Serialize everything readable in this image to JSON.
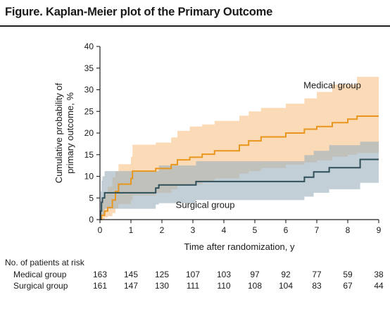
{
  "title": "Figure. Kaplan-Meier plot of the Primary Outcome",
  "chart_data": {
    "type": "line",
    "step": true,
    "xlabel": "Time after randomization, y",
    "ylabel_lines": [
      "Cumulative probability of",
      "primary outcome, %"
    ],
    "xlim": [
      0,
      9
    ],
    "ylim": [
      0,
      40
    ],
    "x_ticks": [
      "0",
      "1",
      "2",
      "3",
      "4",
      "5",
      "6",
      "7",
      "8",
      "9"
    ],
    "y_ticks": [
      "0",
      "5",
      "10",
      "15",
      "20",
      "25",
      "30",
      "35",
      "40"
    ],
    "grid": false,
    "series": [
      {
        "name": "Medical group",
        "color": "#e8961e",
        "band_color": "#f8c58a",
        "x": [
          0,
          0.05,
          0.15,
          0.25,
          0.4,
          0.5,
          0.6,
          1.0,
          1.05,
          1.8,
          2.3,
          2.5,
          2.9,
          3.3,
          3.7,
          4.5,
          4.8,
          5.2,
          6.0,
          6.6,
          7.0,
          7.5,
          8.0,
          8.3,
          9.0
        ],
        "y": [
          0,
          1.0,
          2.0,
          2.8,
          4.5,
          6.5,
          8.2,
          9.5,
          11.2,
          11.8,
          12.7,
          13.8,
          14.4,
          15.1,
          15.9,
          17.2,
          18.2,
          19.1,
          20.0,
          20.9,
          21.5,
          22.4,
          23.2,
          23.9,
          23.9
        ],
        "lower": [
          0,
          0.0,
          0.5,
          0.8,
          1.5,
          2.6,
          3.6,
          4.4,
          5.6,
          6.2,
          7.0,
          7.8,
          8.2,
          8.9,
          9.5,
          10.6,
          11.2,
          11.9,
          12.7,
          13.2,
          13.7,
          14.5,
          15.0,
          15.4,
          15.4
        ],
        "upper": [
          0,
          4.8,
          6.2,
          7.6,
          9.8,
          11.2,
          12.8,
          14.5,
          17.3,
          17.8,
          19.0,
          20.5,
          21.5,
          22.0,
          22.8,
          24.0,
          25.0,
          25.8,
          26.8,
          28.0,
          29.5,
          31.2,
          31.2,
          33.0,
          33.0
        ]
      },
      {
        "name": "Surgical group",
        "color": "#2f4f5a",
        "band_color": "#9db1bd",
        "x": [
          0,
          0.02,
          0.05,
          0.08,
          0.15,
          1.8,
          1.9,
          3.1,
          6.6,
          6.9,
          7.4,
          8.4,
          9.0
        ],
        "y": [
          0,
          2.0,
          4.0,
          5.0,
          6.2,
          7.3,
          8.0,
          8.8,
          9.8,
          11.0,
          12.0,
          13.9,
          13.9
        ],
        "lower": [
          0,
          0.0,
          0.8,
          1.2,
          2.5,
          3.5,
          3.8,
          4.5,
          5.3,
          6.2,
          7.0,
          8.5,
          8.5
        ],
        "upper": [
          0,
          6.5,
          9.0,
          10.0,
          11.2,
          11.2,
          12.5,
          13.5,
          14.9,
          15.9,
          17.2,
          18.0,
          22.0
        ]
      }
    ],
    "annotations": [
      {
        "text": "Medical group",
        "x": 7.5,
        "y": 31
      },
      {
        "text": "Surgical group",
        "x": 3.4,
        "y": 3.3
      }
    ]
  },
  "risk_table": {
    "header": "No. of patients at risk",
    "rows": [
      {
        "label": "Medical group",
        "values": [
          "163",
          "145",
          "125",
          "107",
          "103",
          "97",
          "92",
          "77",
          "59",
          "38"
        ]
      },
      {
        "label": "Surgical group",
        "values": [
          "161",
          "147",
          "130",
          "111",
          "110",
          "108",
          "104",
          "83",
          "67",
          "44"
        ]
      }
    ]
  }
}
